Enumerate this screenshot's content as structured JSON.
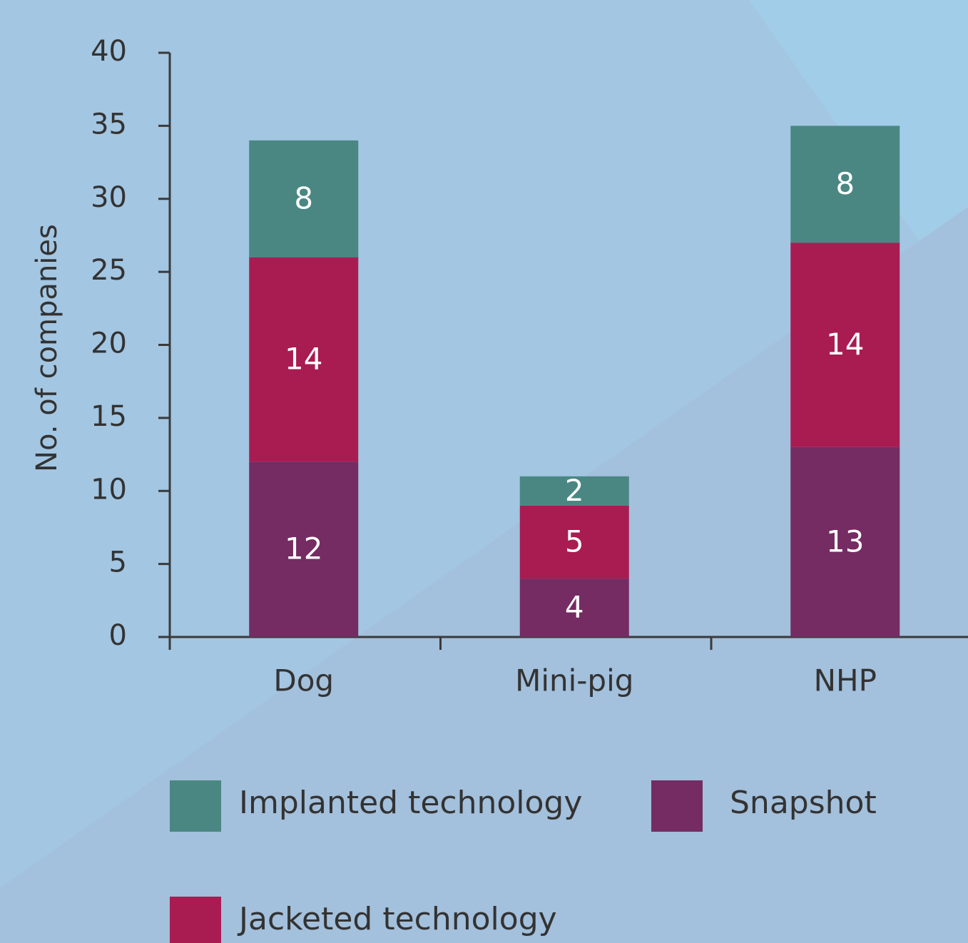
{
  "chart_data": {
    "type": "bar",
    "stacked": true,
    "ylabel": "No. of companies",
    "categories": [
      "Dog",
      "Mini-pig",
      "NHP"
    ],
    "series": [
      {
        "name": "Snapshot",
        "color": "#742c62",
        "values": [
          12,
          4,
          13
        ]
      },
      {
        "name": "Jacketed technology",
        "color": "#a81c52",
        "values": [
          14,
          5,
          14
        ]
      },
      {
        "name": "Implanted technology",
        "color": "#4a8782",
        "values": [
          8,
          2,
          8
        ]
      }
    ],
    "ylim": [
      0,
      40
    ],
    "yticks": [
      0,
      5,
      10,
      15,
      20,
      25,
      30,
      35,
      40
    ]
  }
}
